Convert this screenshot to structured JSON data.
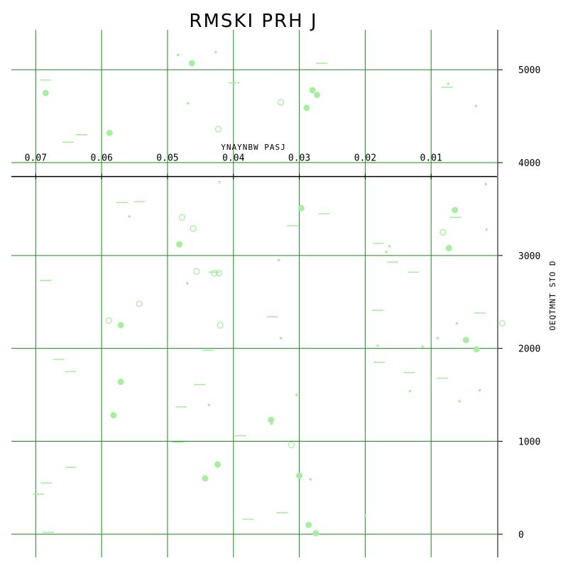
{
  "chart_data": {
    "type": "scatter",
    "title": "RMSKI PRH J",
    "xlabel": "YNAYNBW PASJ",
    "ylabel": "OEQTMNT STO D",
    "x_axis_position": "top-inside",
    "y_axis_position": "right",
    "x_reversed": true,
    "xlim": [
      0.0,
      0.0737
    ],
    "ylim": [
      -250,
      5430
    ],
    "x_ticks": [
      0.07,
      0.06,
      0.05,
      0.04,
      0.03,
      0.02,
      0.01
    ],
    "x_tick_labels": [
      "0.07",
      "0.06",
      "0.05",
      "0.04",
      "0.03",
      "0.02",
      "0.01"
    ],
    "y_ticks": [
      0,
      1000,
      2000,
      3000,
      4000,
      5000
    ],
    "y_tick_labels": [
      "0",
      "1000",
      "2000",
      "3000",
      "4000",
      "5000"
    ],
    "grid": true,
    "grid_color": "#1a8a1a",
    "marker_color": "#a8eea0",
    "series": [
      {
        "marker": "filled-circle",
        "points": [
          [
            0.0685,
            4750
          ],
          [
            0.0588,
            4320
          ],
          [
            0.0463,
            5070
          ],
          [
            0.028,
            4780
          ],
          [
            0.0273,
            4730
          ],
          [
            0.0289,
            4590
          ],
          [
            0.0482,
            3120
          ],
          [
            0.0571,
            2250
          ],
          [
            0.0571,
            1640
          ],
          [
            0.0582,
            1280
          ],
          [
            0.0424,
            750
          ],
          [
            0.0443,
            600
          ],
          [
            0.0343,
            1230
          ],
          [
            0.0286,
            100
          ],
          [
            0.0275,
            10
          ],
          [
            0.03,
            630
          ],
          [
            0.0297,
            3510
          ],
          [
            0.0064,
            3490
          ],
          [
            0.0073,
            3080
          ],
          [
            0.0047,
            2090
          ],
          [
            0.0031,
            1990
          ]
        ]
      },
      {
        "marker": "hollow-circle",
        "points": [
          [
            0.0328,
            4650
          ],
          [
            0.0423,
            4360
          ],
          [
            0.0478,
            3410
          ],
          [
            0.0461,
            3290
          ],
          [
            0.0456,
            2830
          ],
          [
            0.0429,
            2810
          ],
          [
            0.0422,
            2810
          ],
          [
            0.042,
            2250
          ],
          [
            0.0543,
            2480
          ],
          [
            0.0589,
            2300
          ],
          [
            0.0312,
            960
          ],
          [
            0.0082,
            3250
          ],
          [
            -0.0008,
            2270
          ]
        ]
      },
      {
        "marker": "hline",
        "points": [
          [
            0.0685,
            4890
          ],
          [
            0.0651,
            4220
          ],
          [
            0.063,
            4300
          ],
          [
            0.0399,
            4860
          ],
          [
            0.0266,
            5070
          ],
          [
            0.0076,
            4810
          ],
          [
            0.0569,
            3570
          ],
          [
            0.0543,
            3580
          ],
          [
            0.031,
            3320
          ],
          [
            0.0262,
            3450
          ],
          [
            0.018,
            3130
          ],
          [
            0.0158,
            2930
          ],
          [
            0.0127,
            2820
          ],
          [
            0.0429,
            2820
          ],
          [
            0.0685,
            2730
          ],
          [
            0.0341,
            2340
          ],
          [
            0.0181,
            2410
          ],
          [
            0.0026,
            2380
          ],
          [
            0.0665,
            1880
          ],
          [
            0.0647,
            1750
          ],
          [
            0.0438,
            1980
          ],
          [
            0.0451,
            1610
          ],
          [
            0.0479,
            1370
          ],
          [
            0.0389,
            1060
          ],
          [
            0.0484,
            990
          ],
          [
            0.0647,
            720
          ],
          [
            0.0684,
            550
          ],
          [
            0.0696,
            430
          ],
          [
            0.0681,
            20
          ],
          [
            0.0378,
            160
          ],
          [
            0.0326,
            230
          ],
          [
            0.0179,
            1850
          ],
          [
            0.0063,
            3410
          ],
          [
            0.0083,
            1680
          ],
          [
            0.0133,
            1740
          ]
        ]
      },
      {
        "marker": "tiny-dot",
        "points": [
          [
            0.0427,
            5190
          ],
          [
            0.0484,
            5160
          ],
          [
            0.0469,
            4640
          ],
          [
            0.0558,
            3420
          ],
          [
            0.047,
            2700
          ],
          [
            0.0421,
            3790
          ],
          [
            0.0331,
            2950
          ],
          [
            0.0328,
            2110
          ],
          [
            0.0304,
            1500
          ],
          [
            0.0437,
            1390
          ],
          [
            0.0342,
            1190
          ],
          [
            0.0283,
            590
          ],
          [
            0.02,
            200
          ],
          [
            0.0163,
            3100
          ],
          [
            0.0168,
            3040
          ],
          [
            0.009,
            2110
          ],
          [
            0.0061,
            2270
          ],
          [
            0.0057,
            1430
          ],
          [
            0.0032,
            4610
          ],
          [
            0.0017,
            3770
          ],
          [
            0.0016,
            3280
          ],
          [
            0.0026,
            1550
          ],
          [
            0.0132,
            1540
          ],
          [
            0.0074,
            4850
          ],
          [
            0.0113,
            2020
          ],
          [
            0.0181,
            2030
          ]
        ]
      }
    ]
  }
}
